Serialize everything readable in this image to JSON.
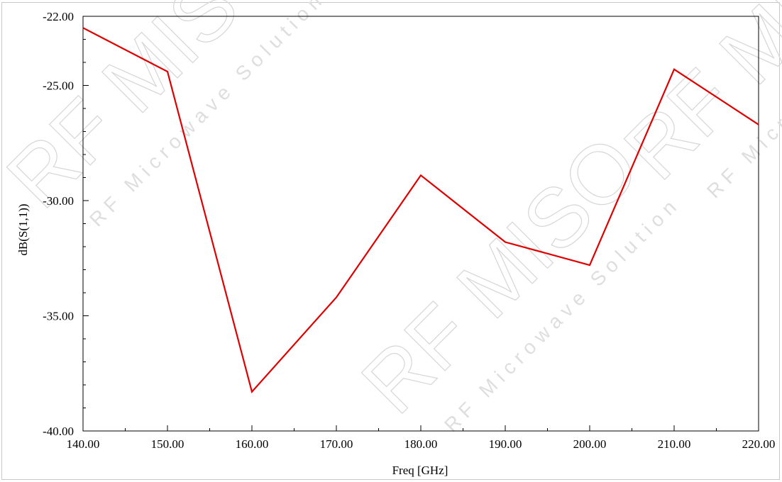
{
  "chart_data": {
    "type": "line",
    "title": "",
    "xlabel": "Freq [GHz]",
    "ylabel": "dB(S(1,1))",
    "xlim": [
      140,
      220
    ],
    "ylim": [
      -40,
      -22
    ],
    "x_ticks": [
      "140.00",
      "150.00",
      "160.00",
      "170.00",
      "180.00",
      "190.00",
      "200.00",
      "210.00",
      "220.00"
    ],
    "y_ticks": [
      "-22.00",
      "-25.00",
      "-30.00",
      "-35.00",
      "-40.00"
    ],
    "series": [
      {
        "x": [
          140,
          150,
          160,
          170,
          180,
          190,
          200,
          210,
          220
        ],
        "values": [
          -22.5,
          -24.4,
          -38.3,
          -34.2,
          -28.9,
          -31.8,
          -32.8,
          -24.3,
          -26.7
        ],
        "color": "#e00000"
      }
    ],
    "grid": false,
    "watermark": {
      "main": "RF MISO",
      "sub": "RF Microwave Solution"
    }
  }
}
